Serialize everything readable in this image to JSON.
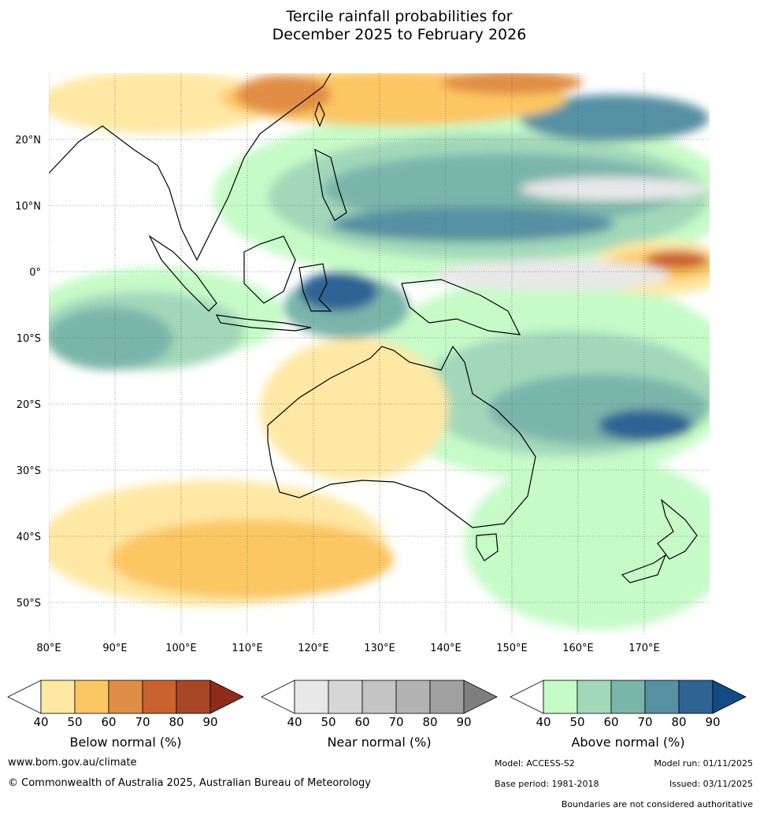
{
  "title": {
    "line1": "Tercile rainfall probabilities for",
    "line2": "December 2025 to February 2026"
  },
  "map": {
    "lon_ticks": [
      "80°E",
      "90°E",
      "100°E",
      "110°E",
      "120°E",
      "130°E",
      "140°E",
      "150°E",
      "160°E",
      "170°E"
    ],
    "lat_ticks": [
      "20°N",
      "10°N",
      "0°",
      "10°S",
      "20°S",
      "30°S",
      "40°S",
      "50°S"
    ],
    "lon_range": [
      80,
      180
    ],
    "lat_range": [
      -55,
      30
    ]
  },
  "legends": [
    {
      "label": "Below normal (%)",
      "ticks": [
        "40",
        "50",
        "60",
        "70",
        "80",
        "90"
      ],
      "colors": [
        "#ffffff",
        "#fee8a4",
        "#fcc664",
        "#e08e45",
        "#c9622f",
        "#a84725",
        "#8e2b1b"
      ]
    },
    {
      "label": "Near normal (%)",
      "ticks": [
        "40",
        "50",
        "60",
        "70",
        "80",
        "90"
      ],
      "colors": [
        "#ffffff",
        "#e8e8e8",
        "#d6d6d6",
        "#c4c4c4",
        "#b3b3b3",
        "#a0a0a0",
        "#7f7f7f"
      ]
    },
    {
      "label": "Above normal (%)",
      "ticks": [
        "40",
        "50",
        "60",
        "70",
        "80",
        "90"
      ],
      "colors": [
        "#ffffff",
        "#c6fbc8",
        "#a2d8b9",
        "#7ab5aa",
        "#5790a3",
        "#2d6494",
        "#124a85"
      ]
    }
  ],
  "footer": {
    "website": "www.bom.gov.au/climate",
    "copyright": "© Commonwealth of Australia 2025, Australian Bureau of Meteorology",
    "model": "Model: ACCESS-S2",
    "model_run": "Model run: 01/11/2025",
    "base_period": "Base period: 1981-2018",
    "issued": "Issued: 03/11/2025",
    "boundaries": "Boundaries are not considered authoritative"
  }
}
